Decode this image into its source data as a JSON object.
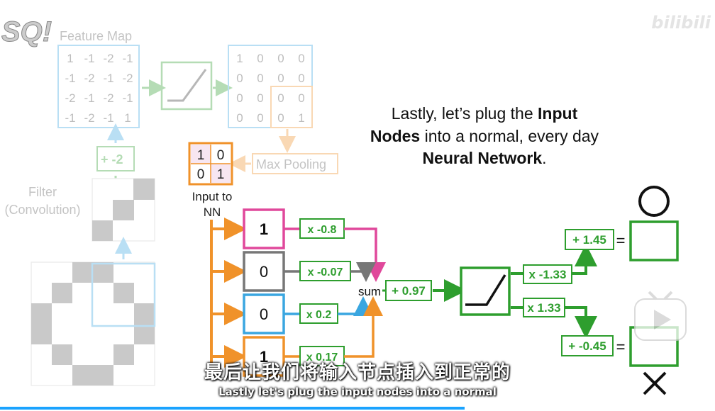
{
  "watermark": "bilibili",
  "logo": "SQ!",
  "feature_map": {
    "label": "Feature Map",
    "rows": [
      [
        "1",
        "-1",
        "-2",
        "-1"
      ],
      [
        "-1",
        "-2",
        "-1",
        "-2"
      ],
      [
        "-2",
        "-1",
        "-2",
        "-1"
      ],
      [
        "-1",
        "-2",
        "-1",
        "1"
      ]
    ]
  },
  "pooled_map": {
    "rows": [
      [
        "1",
        "0",
        "0",
        "0"
      ],
      [
        "0",
        "0",
        "0",
        "0"
      ],
      [
        "0",
        "0",
        "0",
        "0"
      ],
      [
        "0",
        "0",
        "0",
        "1"
      ]
    ]
  },
  "bias_filter": "+ -2",
  "filter_label_line1": "Filter",
  "filter_label_line2": "(Convolution)",
  "max_pooling_label": "Max Pooling",
  "input_matrix": [
    [
      "1",
      "0"
    ],
    [
      "0",
      "1"
    ]
  ],
  "input_to_nn_line1": "Input to",
  "input_to_nn_line2": "NN",
  "heading": {
    "line1_pre": "Lastly, let’s plug the ",
    "line1_bold": "Input",
    "line2_bold": "Nodes",
    "line2_post": " into a normal, every day",
    "line3_bold": "Neural Network",
    "line3_post": "."
  },
  "input_nodes": [
    {
      "value": "1",
      "color": "#e0489b",
      "weight": "x -0.8"
    },
    {
      "value": "0",
      "color": "#777777",
      "weight": "x -0.07"
    },
    {
      "value": "0",
      "color": "#3aa6e0",
      "weight": "x 0.2"
    },
    {
      "value": "1",
      "color": "#f0922a",
      "weight": "x 0.17"
    }
  ],
  "sum_label": "sum",
  "hidden_bias": "+ 0.97",
  "output_weights": [
    "x -1.33",
    "x 1.33"
  ],
  "output_biases": [
    "+ 1.45",
    "+ -0.45"
  ],
  "equals": "=",
  "colors": {
    "orange": "#f0922a",
    "green": "#2e9e2e",
    "pink": "#e0489b",
    "gray": "#777777",
    "blue": "#3aa6e0",
    "progress": "#1aa3ff"
  },
  "subtitle_zh": "最后让我们将输入节点插入到正常的",
  "subtitle_en": "Lastly let's plug the input nodes into a normal",
  "playback_progress": 0.65
}
